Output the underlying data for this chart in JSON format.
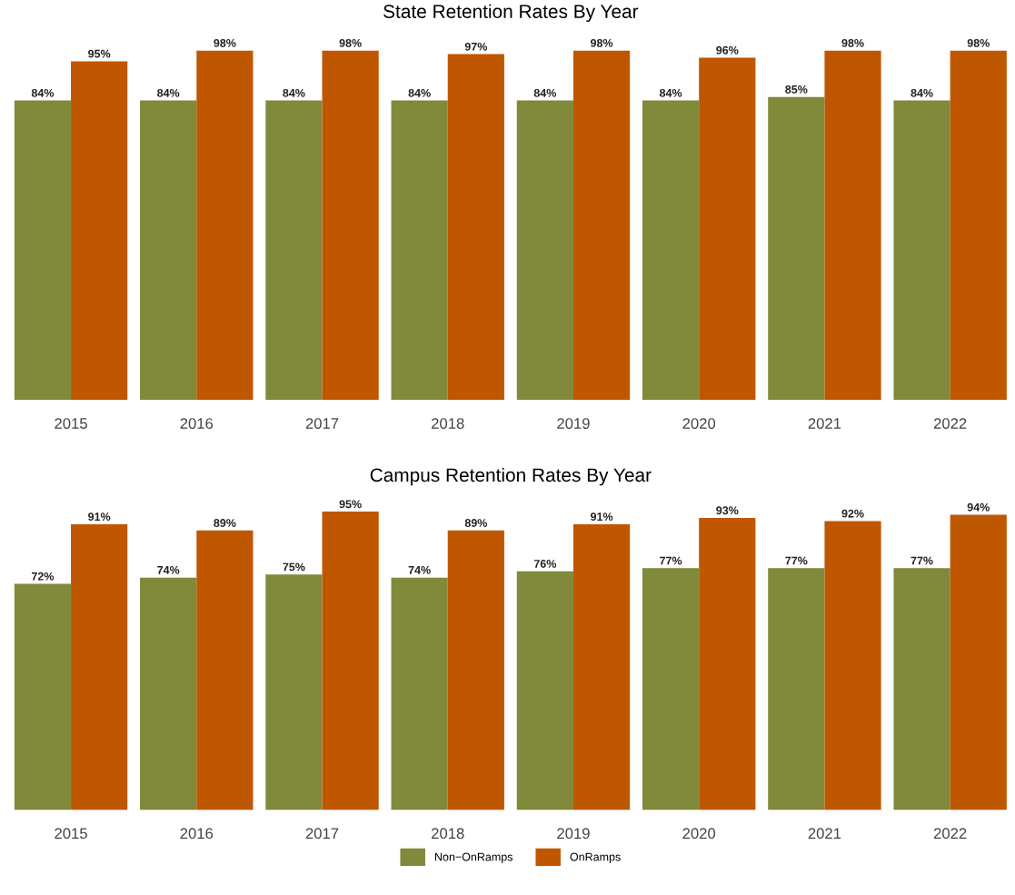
{
  "chart_data": [
    {
      "type": "bar",
      "title": "State Retention Rates By Year",
      "categories": [
        "2015",
        "2016",
        "2017",
        "2018",
        "2019",
        "2020",
        "2021",
        "2022"
      ],
      "tick_labels": "x",
      "grid": false,
      "series": [
        {
          "color": "#81893b",
          "values": [
            84,
            84,
            84,
            84,
            84,
            84,
            85,
            84
          ],
          "value_labels": [
            "84%",
            "84%",
            "84%",
            "84%",
            "84%",
            "84%",
            "85%",
            "84%"
          ]
        },
        {
          "color": "#bf5700",
          "values": [
            95,
            98,
            98,
            97,
            98,
            96,
            98,
            98
          ],
          "value_labels": [
            "95%",
            "98%",
            "98%",
            "97%",
            "98%",
            "96%",
            "98%",
            "98%"
          ]
        }
      ]
    },
    {
      "type": "bar",
      "title": "Campus Retention Rates By Year",
      "categories": [
        "2015",
        "2016",
        "2017",
        "2018",
        "2019",
        "2020",
        "2021",
        "2022"
      ],
      "tick_labels": "x",
      "grid": false,
      "legend": "bottom",
      "series": [
        {
          "name": "Non−OnRamps",
          "color": "#81893b",
          "values": [
            72,
            74,
            75,
            74,
            76,
            77,
            77,
            77
          ],
          "value_labels": [
            "72%",
            "74%",
            "75%",
            "74%",
            "76%",
            "77%",
            "77%",
            "77%"
          ]
        },
        {
          "name": "OnRamps",
          "color": "#bf5700",
          "values": [
            91,
            89,
            95,
            89,
            91,
            93,
            92,
            94
          ],
          "value_labels": [
            "91%",
            "89%",
            "95%",
            "89%",
            "91%",
            "93%",
            "92%",
            "94%"
          ]
        }
      ]
    }
  ]
}
